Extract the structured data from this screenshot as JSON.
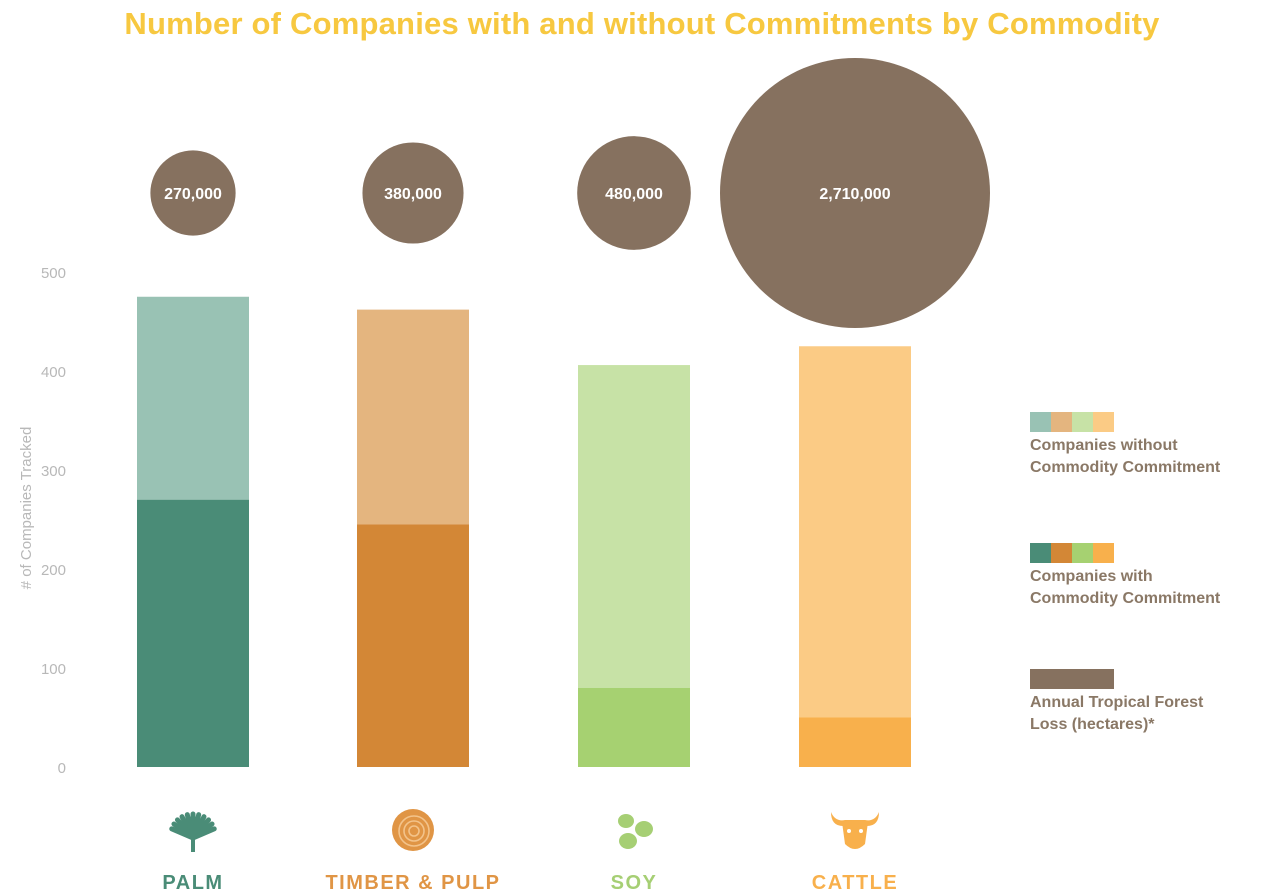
{
  "chart_data": {
    "type": "bar",
    "title": "Number of Companies with and without Commitments by Commodity",
    "ylabel": "# of Companies Tracked",
    "ylim": [
      0,
      500
    ],
    "yticks": [
      "0",
      "100",
      "200",
      "300",
      "400",
      "500"
    ],
    "categories": [
      "PALM",
      "TIMBER & PULP",
      "SOY",
      "CATTLE"
    ],
    "series": [
      {
        "name": "Companies with Commodity Commitment",
        "values": [
          270,
          245,
          80,
          50
        ]
      },
      {
        "name": "Companies without Commodity Commitment",
        "values": [
          205,
          217,
          326,
          375
        ]
      }
    ],
    "bubbles": {
      "name": "Annual Tropical Forest Loss (hectares)*",
      "values": [
        270000,
        380000,
        480000,
        2710000
      ],
      "labels": [
        "270,000",
        "380,000",
        "480,000",
        "2,710,000"
      ]
    },
    "stacked": true,
    "grid": false,
    "legend_position": "right"
  },
  "colors": {
    "title": "#f7c840",
    "bubble": "#86715f",
    "axis_text": "#b8b8b8",
    "with": [
      "#4a8c77",
      "#d38736",
      "#a6d171",
      "#f8b04c"
    ],
    "without": [
      "#99c2b4",
      "#e4b57f",
      "#c7e2a6",
      "#fbcb85"
    ],
    "category_label": [
      "#4a8c77",
      "#e09545",
      "#a6cf74",
      "#f8b04c"
    ]
  },
  "icons": [
    "palm-leaf-icon",
    "tree-rings-icon",
    "soybeans-icon",
    "cow-head-icon"
  ],
  "legend": {
    "without_label": [
      "Companies without",
      "Commodity Commitment"
    ],
    "with_label": [
      "Companies with",
      "Commodity Commitment"
    ],
    "loss_label": [
      "Annual Tropical Forest",
      "Loss (hectares)*"
    ]
  }
}
